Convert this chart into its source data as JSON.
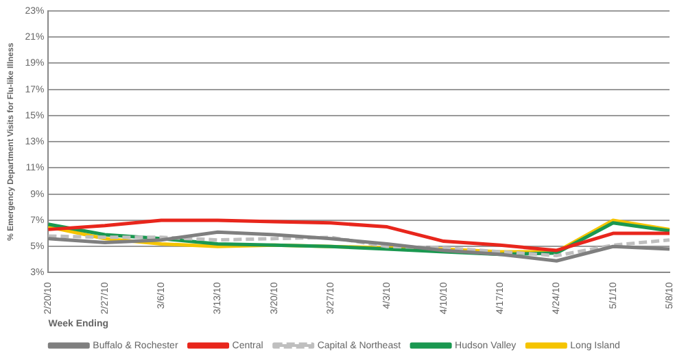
{
  "chart_data": {
    "type": "line",
    "xlabel": "Week Ending",
    "ylabel": "% Emergency Department Visits for Flu-like Illness",
    "categories": [
      "2/20/10",
      "2/27/10",
      "3/6/10",
      "3/13/10",
      "3/20/10",
      "3/27/10",
      "4/3/10",
      "4/10/10",
      "4/17/10",
      "4/24/10",
      "5/1/10",
      "5/8/10"
    ],
    "series": [
      {
        "name": "Buffalo & Rochester",
        "color": "#7f7f7f",
        "values": [
          5.6,
          5.3,
          5.5,
          6.1,
          5.9,
          5.6,
          5.2,
          4.7,
          4.4,
          3.9,
          5.0,
          4.8
        ]
      },
      {
        "name": "Central",
        "color": "#e8261c",
        "values": [
          6.3,
          6.6,
          7.0,
          7.0,
          6.9,
          6.8,
          6.5,
          5.4,
          5.1,
          4.7,
          6.0,
          6.0
        ]
      },
      {
        "name": "Capital & Northeast",
        "color": "#bfbfbf",
        "line_style": "dashed",
        "values": [
          5.8,
          5.7,
          5.7,
          5.5,
          5.6,
          5.7,
          5.0,
          4.9,
          4.6,
          4.3,
          5.1,
          5.5
        ]
      },
      {
        "name": "Hudson Valley",
        "color": "#1a9850",
        "values": [
          6.7,
          5.9,
          5.6,
          5.2,
          5.1,
          5.0,
          4.8,
          4.6,
          4.4,
          4.5,
          6.8,
          6.2
        ]
      },
      {
        "name": "Long Island",
        "color": "#f5c400",
        "values": [
          6.5,
          5.6,
          5.2,
          5.0,
          5.1,
          5.0,
          4.9,
          4.8,
          4.6,
          4.6,
          7.0,
          6.3
        ]
      }
    ],
    "ylim": [
      3,
      23
    ],
    "yticks": [
      {
        "value": 3,
        "label": "3%"
      },
      {
        "value": 5,
        "label": "5%"
      },
      {
        "value": 7,
        "label": "7%"
      },
      {
        "value": 9,
        "label": "9%"
      },
      {
        "value": 11,
        "label": "11%"
      },
      {
        "value": 13,
        "label": "13%"
      },
      {
        "value": 15,
        "label": "15%"
      },
      {
        "value": 17,
        "label": "17%"
      },
      {
        "value": 19,
        "label": "19%"
      },
      {
        "value": 21,
        "label": "21%"
      },
      {
        "value": 23,
        "label": "23%"
      }
    ],
    "grid": "y",
    "legend": "bottom",
    "marker": "none",
    "line_style": "solid"
  }
}
